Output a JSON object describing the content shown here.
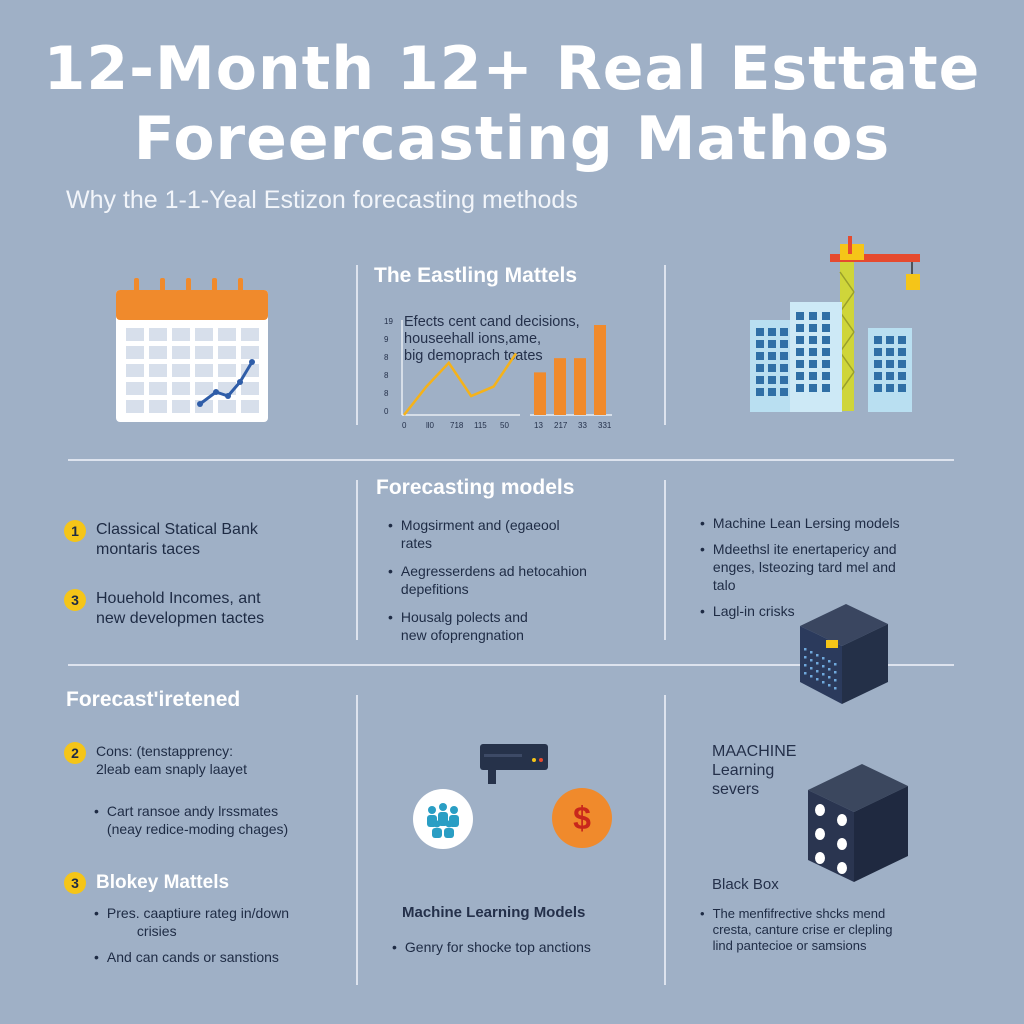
{
  "header": {
    "title_line1": "12-Month 12+ Real Esttate",
    "title_line2": "Foreercasting Mathos",
    "subtitle": "Why the 1-1-Yeal Estizon forecasting methods"
  },
  "top": {
    "heading": "The Eastling Mattels",
    "chart_text": [
      "Efects cent cand decisions,",
      "houseehall ions,ame,",
      "big demoprach tcates"
    ],
    "y_ticks": [
      "19",
      "9",
      "8",
      "8",
      "8",
      "0"
    ],
    "x_ticks": [
      "0",
      "ll0",
      "718",
      "115",
      "50",
      "13",
      "217",
      "33",
      "331"
    ],
    "chart_data": {
      "type": "line",
      "line_values": [
        0,
        6,
        11,
        4,
        6,
        13
      ],
      "bar_values": [
        9,
        12,
        12,
        19
      ]
    }
  },
  "middle": {
    "heading": "Forecasting models",
    "left_items": [
      {
        "num": "1",
        "lines": [
          "Classical Statical Bank",
          "montaris taces"
        ]
      },
      {
        "num": "3",
        "lines": [
          "Houehold Incomes, ant",
          "new developmen tactes"
        ]
      }
    ],
    "center_items": [
      [
        "Mogsirment and (egaeool",
        "rates"
      ],
      [
        "Aegresserdens ad hetocahion",
        "depefitions"
      ],
      [
        "Housalg polects and",
        "new ofoprengnation"
      ]
    ],
    "right_items": [
      [
        "Machine Lean Lersing models"
      ],
      [
        "Mdeethsl ite enertapericy and",
        "enges, lsteozing tard mel and",
        "talo"
      ],
      [
        "Lagl-in crisks"
      ]
    ]
  },
  "bottom": {
    "heading": "Forecast'iretened",
    "cons_item": {
      "num": "2",
      "lines": [
        "Cons: (tenstapprency:",
        "2leab eam snaply laayet"
      ]
    },
    "cons_bullet": [
      "Cart ransoe andy lrssmates",
      "(neay redice-moding chages)"
    ],
    "blokey": {
      "num": "3",
      "title": "Blokey Mattels"
    },
    "blokey_bullets": [
      [
        "Pres. caaptiure rateg in/down",
        "crisies"
      ],
      [
        "And can cands or sanstions"
      ]
    ],
    "center_title": "Machine Learning Models",
    "center_bullet": "Genry for shocke top anctions",
    "currency_symbol": "$",
    "right_title_lines": [
      "MAACHINE",
      "Learning",
      "severs"
    ],
    "black_box_label": "Black Box",
    "right_bullet": [
      "The menfifrective shcks mend",
      "cresta, canture crise er clepling",
      "lind pantecioe or samsions"
    ]
  },
  "colors": {
    "background": "#9fb0c6",
    "accent_orange": "#f08a2c",
    "accent_yellow": "#f5c518",
    "building_blue": "#8fc9e6",
    "dark_box": "#2e3b52"
  }
}
